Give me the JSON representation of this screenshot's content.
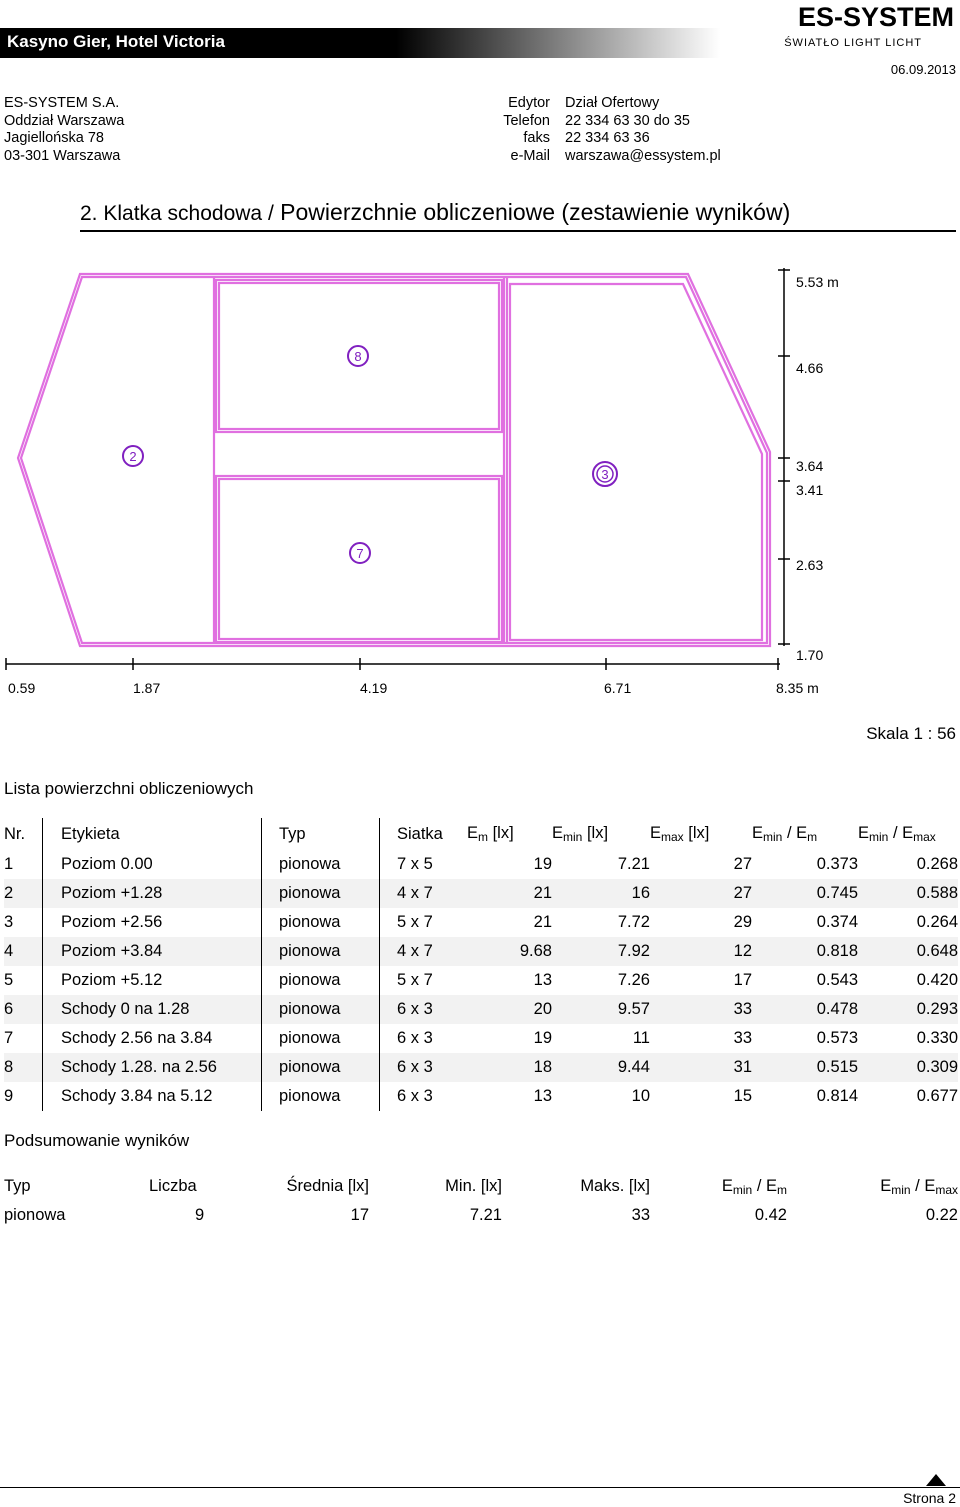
{
  "header": {
    "title": "Kasyno Gier, Hotel Victoria",
    "logo_main": "ES-SYSTEM",
    "logo_sub": "ŚWIATŁO LIGHT LICHT",
    "date": "06.09.2013"
  },
  "address": {
    "company": "ES-SYSTEM S.A.",
    "branch": "Oddział Warszawa",
    "street": "Jagiellońska 78",
    "city": "03-301 Warszawa"
  },
  "contact": {
    "editor_label": "Edytor",
    "editor_value": "Dział Ofertowy",
    "phone_label": "Telefon",
    "phone_value": "22 334 63 30 do 35",
    "fax_label": "faks",
    "fax_value": "22 334 63 36",
    "email_label": "e-Mail",
    "email_value": "warszawa@essystem.pl"
  },
  "page_heading": {
    "prefix": "2. Klatka schodowa /",
    "title": "Powierzchnie obliczeniowe (zestawienie wyników)"
  },
  "plan": {
    "x_ticks": [
      "0.59",
      "1.87",
      "4.19",
      "6.71",
      "8.35 m"
    ],
    "y_ticks": [
      "5.53 m",
      "4.66",
      "3.64",
      "3.41",
      "2.63",
      "1.70"
    ],
    "markers": [
      "8",
      "2",
      "3",
      "7"
    ],
    "line_color": "#e070e0",
    "marker_color": "#8020c0"
  },
  "scale": "Skala 1 : 56",
  "list": {
    "title": "Lista powierzchni obliczeniowych",
    "headers": {
      "nr": "Nr.",
      "label": "Etykieta",
      "type": "Typ",
      "grid": "Siatka",
      "em": "E",
      "em_sub": "m",
      "em_unit": " [lx]",
      "emin": "E",
      "emin_sub": "min",
      "emin_unit": " [lx]",
      "emax": "E",
      "emax_sub": "max",
      "emax_unit": " [lx]",
      "r1_a": "E",
      "r1_a_sub": "min",
      "r1_mid": " / E",
      "r1_b_sub": "m",
      "r2_a": "E",
      "r2_a_sub": "min",
      "r2_mid": " / E",
      "r2_b_sub": "max"
    },
    "rows": [
      {
        "nr": "1",
        "label": "Poziom 0.00",
        "type": "pionowa",
        "grid": "7 x 5",
        "em": "19",
        "emin": "7.21",
        "emax": "27",
        "r1": "0.373",
        "r2": "0.268"
      },
      {
        "nr": "2",
        "label": "Poziom +1.28",
        "type": "pionowa",
        "grid": "4 x 7",
        "em": "21",
        "emin": "16",
        "emax": "27",
        "r1": "0.745",
        "r2": "0.588"
      },
      {
        "nr": "3",
        "label": "Poziom +2.56",
        "type": "pionowa",
        "grid": "5 x 7",
        "em": "21",
        "emin": "7.72",
        "emax": "29",
        "r1": "0.374",
        "r2": "0.264"
      },
      {
        "nr": "4",
        "label": "Poziom +3.84",
        "type": "pionowa",
        "grid": "4 x 7",
        "em": "9.68",
        "emin": "7.92",
        "emax": "12",
        "r1": "0.818",
        "r2": "0.648"
      },
      {
        "nr": "5",
        "label": "Poziom +5.12",
        "type": "pionowa",
        "grid": "5 x 7",
        "em": "13",
        "emin": "7.26",
        "emax": "17",
        "r1": "0.543",
        "r2": "0.420"
      },
      {
        "nr": "6",
        "label": "Schody 0 na 1.28",
        "type": "pionowa",
        "grid": "6 x 3",
        "em": "20",
        "emin": "9.57",
        "emax": "33",
        "r1": "0.478",
        "r2": "0.293"
      },
      {
        "nr": "7",
        "label": "Schody 2.56 na 3.84",
        "type": "pionowa",
        "grid": "6 x 3",
        "em": "19",
        "emin": "11",
        "emax": "33",
        "r1": "0.573",
        "r2": "0.330"
      },
      {
        "nr": "8",
        "label": "Schody 1.28. na 2.56",
        "type": "pionowa",
        "grid": "6 x 3",
        "em": "18",
        "emin": "9.44",
        "emax": "31",
        "r1": "0.515",
        "r2": "0.309"
      },
      {
        "nr": "9",
        "label": "Schody 3.84 na 5.12",
        "type": "pionowa",
        "grid": "6 x 3",
        "em": "13",
        "emin": "10",
        "emax": "15",
        "r1": "0.814",
        "r2": "0.677"
      }
    ]
  },
  "summary": {
    "title": "Podsumowanie wyników",
    "headers": {
      "type": "Typ",
      "count": "Liczba",
      "avg": "Średnia [lx]",
      "min": "Min. [lx]",
      "max": "Maks. [lx]",
      "r1_a": "E",
      "r1_a_sub": "min",
      "r1_mid": " / E",
      "r1_b_sub": "m",
      "r2_a": "E",
      "r2_a_sub": "min",
      "r2_mid": " / E",
      "r2_b_sub": "max"
    },
    "row": {
      "type": "pionowa",
      "count": "9",
      "avg": "17",
      "min": "7.21",
      "max": "33",
      "r1": "0.42",
      "r2": "0.22"
    }
  },
  "footer": {
    "page": "Strona 2"
  }
}
